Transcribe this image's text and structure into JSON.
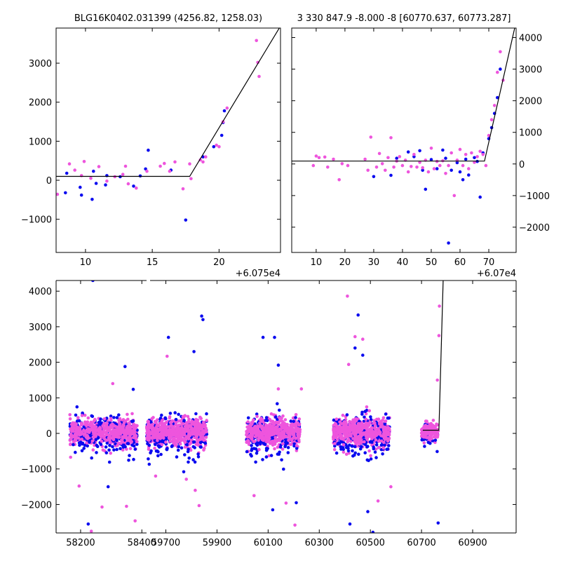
{
  "chart_data": [
    {
      "panel": "top-left",
      "type": "scatter",
      "title": "BLG16K0402.031399 (4256.82, 1258.03)",
      "x_offset_label": "+6.075e4",
      "xlim": [
        7.8,
        24.6
      ],
      "ylim": [
        -1850,
        3900
      ],
      "xticks": [
        10,
        15,
        20
      ],
      "yticks": [
        -1000,
        0,
        1000,
        2000,
        3000
      ],
      "ytick_side": "left",
      "series": [
        {
          "color": "#0a0aef",
          "points": [
            [
              8.5,
              -320
            ],
            [
              8.6,
              180
            ],
            [
              9.6,
              -180
            ],
            [
              9.7,
              -380
            ],
            [
              10.5,
              -490
            ],
            [
              10.6,
              230
            ],
            [
              10.8,
              -80
            ],
            [
              11.5,
              -120
            ],
            [
              11.6,
              120
            ],
            [
              12.6,
              90
            ],
            [
              13.6,
              -150
            ],
            [
              14.1,
              110
            ],
            [
              14.5,
              290
            ],
            [
              14.7,
              770
            ],
            [
              16.4,
              260
            ],
            [
              17.5,
              -1020
            ],
            [
              19.6,
              860
            ],
            [
              20.2,
              1150
            ],
            [
              20.3,
              1480
            ],
            [
              20.4,
              1780
            ],
            [
              18.8,
              600
            ]
          ]
        },
        {
          "color": "#ee55dd",
          "points": [
            [
              7.9,
              -360
            ],
            [
              8.8,
              420
            ],
            [
              9.2,
              260
            ],
            [
              9.7,
              120
            ],
            [
              9.9,
              480
            ],
            [
              10.4,
              50
            ],
            [
              11.0,
              350
            ],
            [
              11.6,
              -20
            ],
            [
              12.2,
              90
            ],
            [
              12.8,
              150
            ],
            [
              13.0,
              360
            ],
            [
              13.2,
              -90
            ],
            [
              13.8,
              -200
            ],
            [
              14.6,
              230
            ],
            [
              15.6,
              360
            ],
            [
              15.9,
              430
            ],
            [
              16.3,
              230
            ],
            [
              16.7,
              470
            ],
            [
              17.3,
              -220
            ],
            [
              17.8,
              420
            ],
            [
              17.9,
              40
            ],
            [
              18.6,
              520
            ],
            [
              18.8,
              470
            ],
            [
              19.0,
              600
            ],
            [
              19.8,
              900
            ],
            [
              20.0,
              860
            ],
            [
              20.3,
              1500
            ],
            [
              20.6,
              1850
            ],
            [
              22.8,
              3580
            ],
            [
              22.9,
              3020
            ],
            [
              23.0,
              2660
            ]
          ]
        }
      ],
      "model_line": [
        [
          7.8,
          100
        ],
        [
          17.8,
          100
        ],
        [
          24.6,
          3950
        ]
      ]
    },
    {
      "panel": "top-right",
      "type": "scatter",
      "title": "3 330 847.9 -8.000 -8 [60770.637, 60773.287]",
      "x_offset_label": "+6.07e4",
      "xlim": [
        1.5,
        79.5
      ],
      "ylim": [
        -2800,
        4300
      ],
      "xticks": [
        10,
        20,
        30,
        40,
        50,
        60,
        70
      ],
      "yticks": [
        -2000,
        -1000,
        0,
        1000,
        2000,
        3000,
        4000
      ],
      "ytick_side": "right",
      "series": [
        {
          "color": "#0a0aef",
          "points": [
            [
              30,
              -400
            ],
            [
              36,
              -360
            ],
            [
              38,
              180
            ],
            [
              42,
              380
            ],
            [
              44,
              230
            ],
            [
              46,
              420
            ],
            [
              47,
              -200
            ],
            [
              48,
              -800
            ],
            [
              50,
              140
            ],
            [
              52,
              -150
            ],
            [
              54,
              440
            ],
            [
              55,
              180
            ],
            [
              56,
              -2500
            ],
            [
              57,
              -200
            ],
            [
              59,
              40
            ],
            [
              60,
              -250
            ],
            [
              61,
              -500
            ],
            [
              62,
              150
            ],
            [
              63,
              -350
            ],
            [
              65,
              200
            ],
            [
              66,
              80
            ],
            [
              67,
              -1050
            ],
            [
              68,
              350
            ],
            [
              70,
              800
            ],
            [
              71,
              1150
            ],
            [
              72,
              1600
            ],
            [
              74,
              3000
            ],
            [
              73,
              2100
            ]
          ]
        },
        {
          "color": "#ee55dd",
          "points": [
            [
              9,
              -50
            ],
            [
              10,
              250
            ],
            [
              11,
              200
            ],
            [
              13,
              220
            ],
            [
              14,
              -100
            ],
            [
              16,
              150
            ],
            [
              18,
              -500
            ],
            [
              19,
              10
            ],
            [
              21,
              -50
            ],
            [
              27,
              150
            ],
            [
              28,
              -200
            ],
            [
              29,
              850
            ],
            [
              31,
              -100
            ],
            [
              32,
              330
            ],
            [
              33,
              10
            ],
            [
              34,
              -200
            ],
            [
              35,
              200
            ],
            [
              36,
              830
            ],
            [
              37,
              -100
            ],
            [
              38,
              90
            ],
            [
              39,
              230
            ],
            [
              40,
              -50
            ],
            [
              41,
              120
            ],
            [
              42,
              -250
            ],
            [
              43,
              -80
            ],
            [
              44,
              300
            ],
            [
              45,
              -100
            ],
            [
              46,
              50
            ],
            [
              47,
              -120
            ],
            [
              48,
              120
            ],
            [
              49,
              -250
            ],
            [
              50,
              500
            ],
            [
              51,
              -150
            ],
            [
              52,
              80
            ],
            [
              53,
              -50
            ],
            [
              54,
              100
            ],
            [
              55,
              -300
            ],
            [
              56,
              -50
            ],
            [
              57,
              350
            ],
            [
              58,
              -1000
            ],
            [
              59,
              120
            ],
            [
              60,
              460
            ],
            [
              61,
              -50
            ],
            [
              62,
              300
            ],
            [
              63,
              -150
            ],
            [
              64,
              350
            ],
            [
              65,
              50
            ],
            [
              66,
              230
            ],
            [
              67,
              400
            ],
            [
              68,
              300
            ],
            [
              69,
              -50
            ],
            [
              70,
              900
            ],
            [
              71,
              1400
            ],
            [
              72,
              1850
            ],
            [
              73,
              2900
            ],
            [
              74,
              3550
            ],
            [
              75,
              2650
            ]
          ]
        }
      ],
      "model_line": [
        [
          1.5,
          90
        ],
        [
          68.5,
          90
        ],
        [
          79.5,
          4500
        ]
      ]
    },
    {
      "panel": "bottom",
      "type": "scatter",
      "xlim": [
        58120,
        61070
      ],
      "ylim": [
        -2800,
        4300
      ],
      "xticks": [
        58200,
        58400,
        59700,
        59900,
        60100,
        60300,
        60500,
        60700,
        60900
      ],
      "yticks": [
        -2000,
        -1000,
        0,
        1000,
        2000,
        3000,
        4000
      ],
      "ytick_side": "left",
      "axis_break": "between 58400 and 59700",
      "seasons": [
        {
          "xmin": 58165,
          "xmax": 58385,
          "scatter": 350,
          "n_blue": 230,
          "n_pink": 330
        },
        {
          "xmin": 59625,
          "xmax": 59860,
          "scatter": 380,
          "n_blue": 200,
          "n_pink": 340
        },
        {
          "xmin": 60015,
          "xmax": 60225,
          "scatter": 380,
          "n_blue": 180,
          "n_pink": 320
        },
        {
          "xmin": 60355,
          "xmax": 60575,
          "scatter": 380,
          "n_blue": 220,
          "n_pink": 330
        },
        {
          "xmin": 60700,
          "xmax": 60765,
          "scatter": 260,
          "n_blue": 25,
          "n_pink": 80
        }
      ],
      "outliers_blue": [
        [
          58240,
          4300
        ],
        [
          58225,
          -2550
        ],
        [
          58290,
          -1500
        ],
        [
          58345,
          1880
        ],
        [
          58372,
          1240
        ],
        [
          59710,
          2700
        ],
        [
          59770,
          -1080
        ],
        [
          59810,
          2300
        ],
        [
          59840,
          3300
        ],
        [
          59845,
          3200
        ],
        [
          60080,
          2700
        ],
        [
          60125,
          2700
        ],
        [
          60140,
          1920
        ],
        [
          60118,
          -2150
        ],
        [
          60210,
          -1950
        ],
        [
          60420,
          -2550
        ],
        [
          60440,
          2400
        ],
        [
          60452,
          3330
        ],
        [
          60490,
          -2200
        ],
        [
          60510,
          -2780
        ],
        [
          60470,
          2200
        ],
        [
          60765,
          -2520
        ]
      ],
      "outliers_pink": [
        [
          58195,
          -1480
        ],
        [
          58235,
          -2750
        ],
        [
          58270,
          -2070
        ],
        [
          58305,
          1400
        ],
        [
          58350,
          -2050
        ],
        [
          58378,
          -2460
        ],
        [
          59660,
          -1200
        ],
        [
          59705,
          2170
        ],
        [
          59780,
          -1290
        ],
        [
          59815,
          -1600
        ],
        [
          59830,
          -2030
        ],
        [
          60045,
          -1750
        ],
        [
          60140,
          1250
        ],
        [
          60170,
          -1960
        ],
        [
          60205,
          -2580
        ],
        [
          60230,
          1250
        ],
        [
          60410,
          3860
        ],
        [
          60415,
          1940
        ],
        [
          60440,
          2720
        ],
        [
          60470,
          2650
        ],
        [
          60530,
          -1900
        ],
        [
          60580,
          -1500
        ],
        [
          60770,
          3580
        ],
        [
          60768,
          2750
        ],
        [
          60762,
          1500
        ]
      ],
      "model_line": [
        [
          60705,
          90
        ],
        [
          60768,
          90
        ],
        [
          60785,
          4400
        ]
      ],
      "colors": {
        "blue": "#0a0aef",
        "pink": "#ee55dd"
      }
    }
  ]
}
